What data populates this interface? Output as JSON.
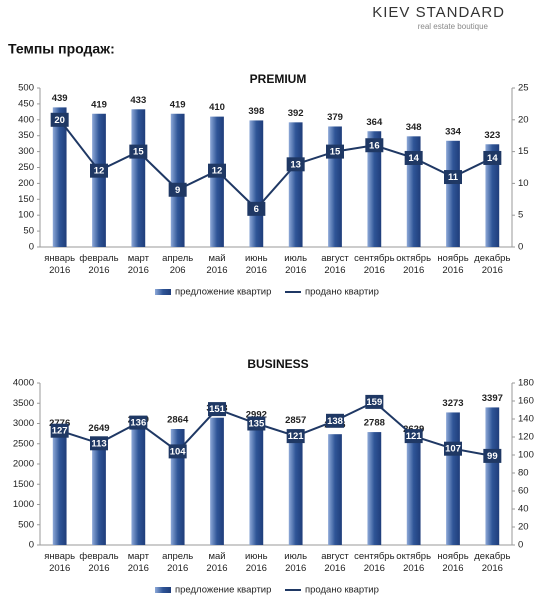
{
  "header": {
    "brand": "KIEV STANDARD",
    "tagline": "real estate boutique",
    "heading": "Темпы продаж:"
  },
  "chart_data": [
    {
      "type": "bar",
      "title": "PREMIUM",
      "categories": [
        [
          "январь",
          "2016"
        ],
        [
          "февраль",
          "2016"
        ],
        [
          "март",
          "2016"
        ],
        [
          "апрель",
          "206"
        ],
        [
          "май",
          "2016"
        ],
        [
          "июнь",
          "2016"
        ],
        [
          "июль",
          "2016"
        ],
        [
          "август",
          "2016"
        ],
        [
          "сентябрь",
          "2016"
        ],
        [
          "октябрь",
          "2016"
        ],
        [
          "ноябрь",
          "2016"
        ],
        [
          "декабрь",
          "2016"
        ]
      ],
      "series": [
        {
          "name": "предложение квартир",
          "type": "bar",
          "color": "#2f5597",
          "values": [
            439,
            419,
            433,
            419,
            410,
            398,
            392,
            379,
            364,
            348,
            334,
            323
          ]
        },
        {
          "name": "продано квартир",
          "type": "line",
          "axis": "y2",
          "color": "#1f3864",
          "values": [
            20,
            12,
            15,
            9,
            12,
            6,
            13,
            15,
            16,
            14,
            11,
            14
          ]
        }
      ],
      "ylim": [
        0,
        500
      ],
      "yticks": [
        0,
        50,
        100,
        150,
        200,
        250,
        300,
        350,
        400,
        450,
        500
      ],
      "y2lim": [
        0,
        25
      ],
      "y2ticks": [
        0,
        5,
        10,
        15,
        20,
        25
      ],
      "legend": "bottom"
    },
    {
      "type": "bar",
      "title": "BUSINESS",
      "categories": [
        [
          "январь",
          "2016"
        ],
        [
          "февраль",
          "2016"
        ],
        [
          "март",
          "2016"
        ],
        [
          "апрель",
          "2016"
        ],
        [
          "май",
          "2016"
        ],
        [
          "июнь",
          "2016"
        ],
        [
          "июль",
          "2016"
        ],
        [
          "август",
          "2016"
        ],
        [
          "сентябрь",
          "2016"
        ],
        [
          "октябрь",
          "2016"
        ],
        [
          "ноябрь",
          "2016"
        ],
        [
          "декабрь",
          "2016"
        ]
      ],
      "series": [
        {
          "name": "предложение квартир",
          "type": "bar",
          "color": "#2f5597",
          "values": [
            2776,
            2649,
            2859,
            2864,
            3143,
            2992,
            2857,
            2736,
            2788,
            2629,
            3273,
            3397
          ]
        },
        {
          "name": "продано квартир",
          "type": "line",
          "axis": "y2",
          "color": "#1f3864",
          "values": [
            127,
            113,
            136,
            104,
            151,
            135,
            121,
            138,
            159,
            121,
            107,
            99
          ]
        }
      ],
      "ylim": [
        0,
        4000
      ],
      "yticks": [
        0,
        500,
        1000,
        1500,
        2000,
        2500,
        3000,
        3500,
        4000
      ],
      "y2lim": [
        0,
        180
      ],
      "y2ticks": [
        0,
        20,
        40,
        60,
        80,
        100,
        120,
        140,
        160,
        180
      ],
      "legend": "bottom"
    }
  ]
}
